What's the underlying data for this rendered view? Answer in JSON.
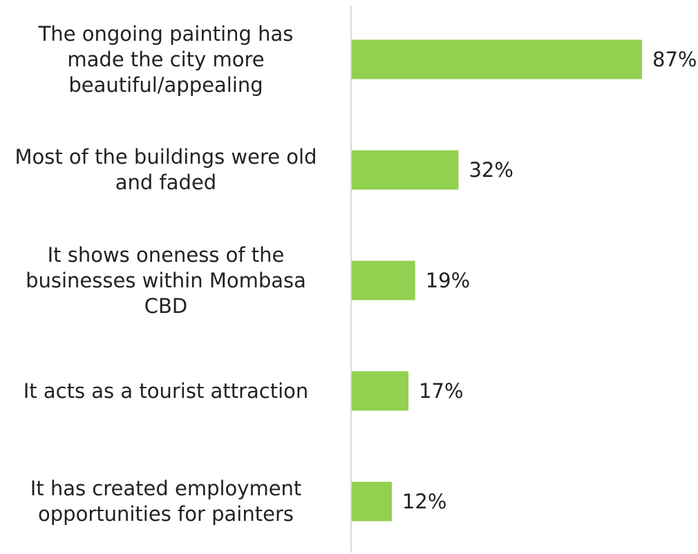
{
  "chart_data": {
    "type": "bar",
    "orientation": "horizontal",
    "categories": [
      "The ongoing painting has made the city more beautiful/appealing",
      "Most of the buildings were old and faded",
      "It shows oneness of the businesses within Mombasa CBD",
      "It acts as a tourist attraction",
      "It has created employment opportunities for painters"
    ],
    "values": [
      87,
      32,
      19,
      17,
      12
    ],
    "value_labels": [
      "87%",
      "32%",
      "19%",
      "17%",
      "12%"
    ],
    "unit": "%",
    "xlim": [
      0,
      100
    ],
    "grid": false,
    "legend": "none",
    "bar_color": "#92d050",
    "axis_color": "#d9d9d9"
  }
}
